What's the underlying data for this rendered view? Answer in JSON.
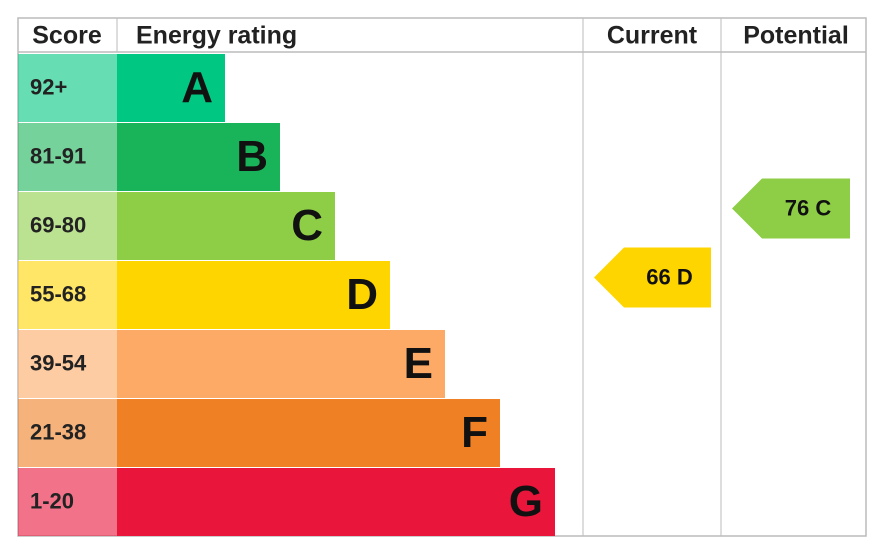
{
  "header": {
    "score": "Score",
    "energy_rating": "Energy rating",
    "current": "Current",
    "potential": "Potential"
  },
  "bands": [
    {
      "score": "92+",
      "letter": "A",
      "color": "#00c781"
    },
    {
      "score": "81-91",
      "letter": "B",
      "color": "#19b459"
    },
    {
      "score": "69-80",
      "letter": "C",
      "color": "#8dce46"
    },
    {
      "score": "55-68",
      "letter": "D",
      "color": "#ffd500"
    },
    {
      "score": "39-54",
      "letter": "E",
      "color": "#fcaa65"
    },
    {
      "score": "21-38",
      "letter": "F",
      "color": "#ef8023"
    },
    {
      "score": "1-20",
      "letter": "G",
      "color": "#e9153b"
    }
  ],
  "current": {
    "score": 66,
    "rating": "D"
  },
  "potential": {
    "score": 76,
    "rating": "C"
  }
}
